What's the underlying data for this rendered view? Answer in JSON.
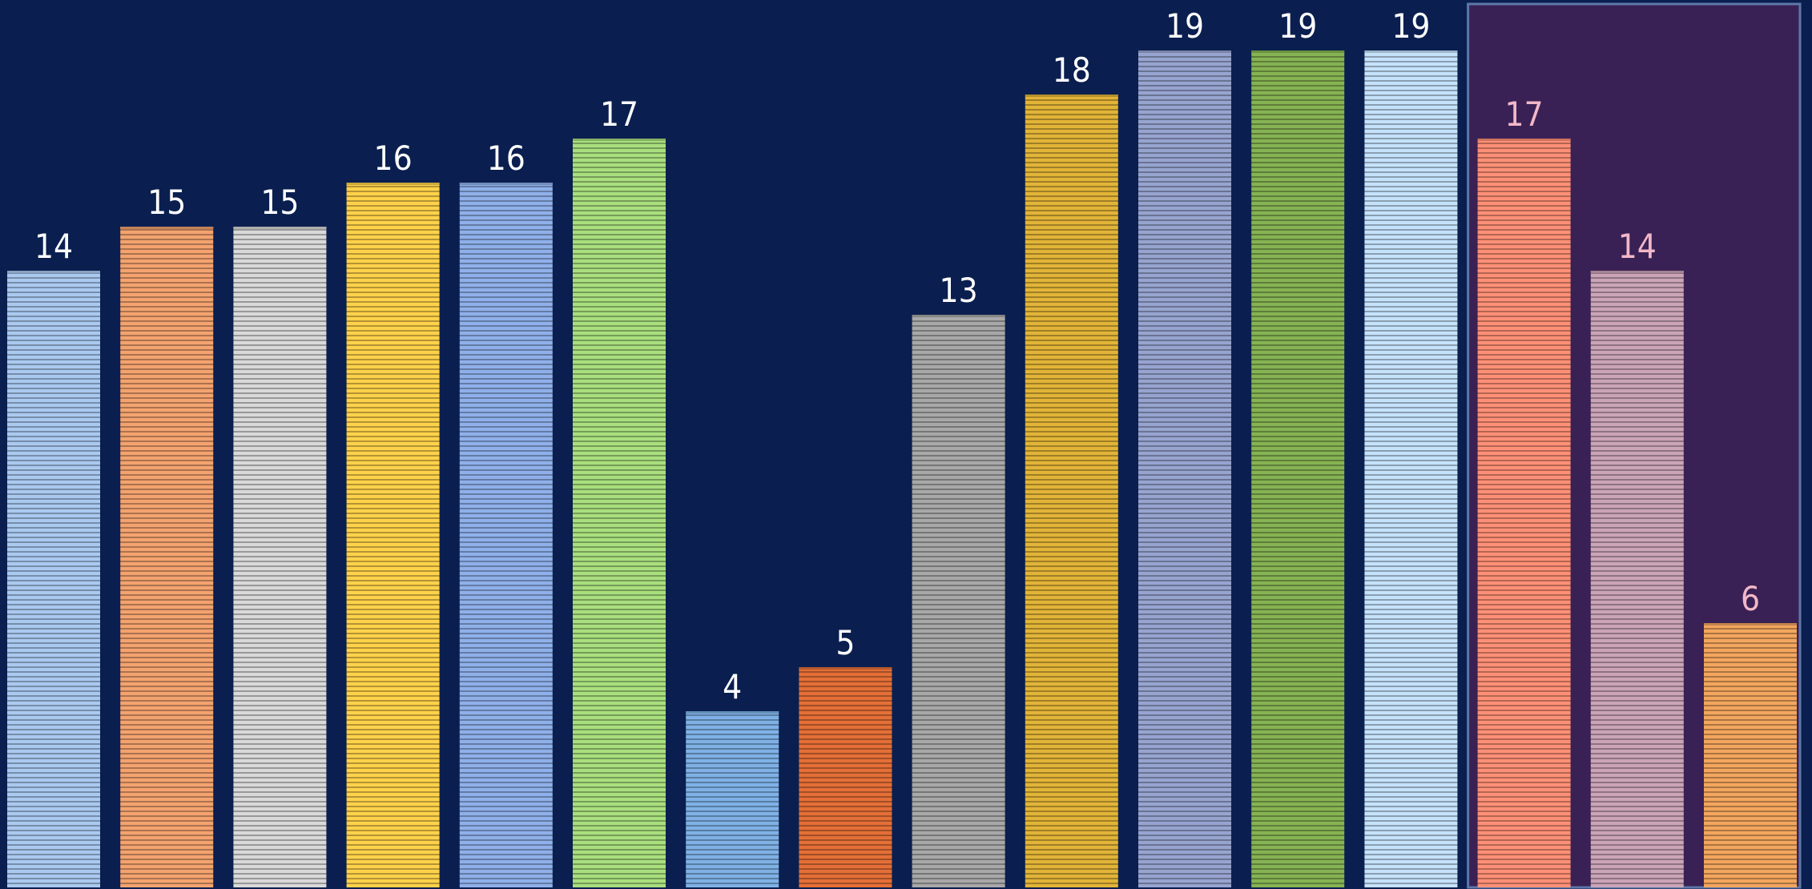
{
  "chart_data": {
    "type": "bar",
    "title": "",
    "xlabel": "",
    "ylabel": "",
    "ylim": [
      0,
      20
    ],
    "grid": false,
    "legend": "none",
    "values": [
      14,
      15,
      15,
      16,
      16,
      17,
      4,
      5,
      13,
      18,
      19,
      19,
      19,
      17,
      14,
      6
    ],
    "colors": [
      "#aac9f0",
      "#f4a36f",
      "#d9d9d9",
      "#ffd24a",
      "#8fb0ea",
      "#a9df7e",
      "#7fb1e6",
      "#e46f37",
      "#a8a8a8",
      "#e2b437",
      "#97a4d0",
      "#86b353",
      "#c5e2fb",
      "#ff9077",
      "#cba4b8",
      "#f3a65e"
    ],
    "labels": [
      "14",
      "15",
      "15",
      "16",
      "16",
      "17",
      "4",
      "5",
      "13",
      "18",
      "19",
      "19",
      "19",
      "17",
      "14",
      "6"
    ],
    "highlight": {
      "from_index": 13,
      "to_index": 15
    },
    "style": {
      "background": "#0a1f4f",
      "highlight_background": "#3a2155",
      "highlight_border": "#5d77a8",
      "label_color": "#ffffff",
      "highlight_label_color": "#f2b8c8"
    }
  }
}
